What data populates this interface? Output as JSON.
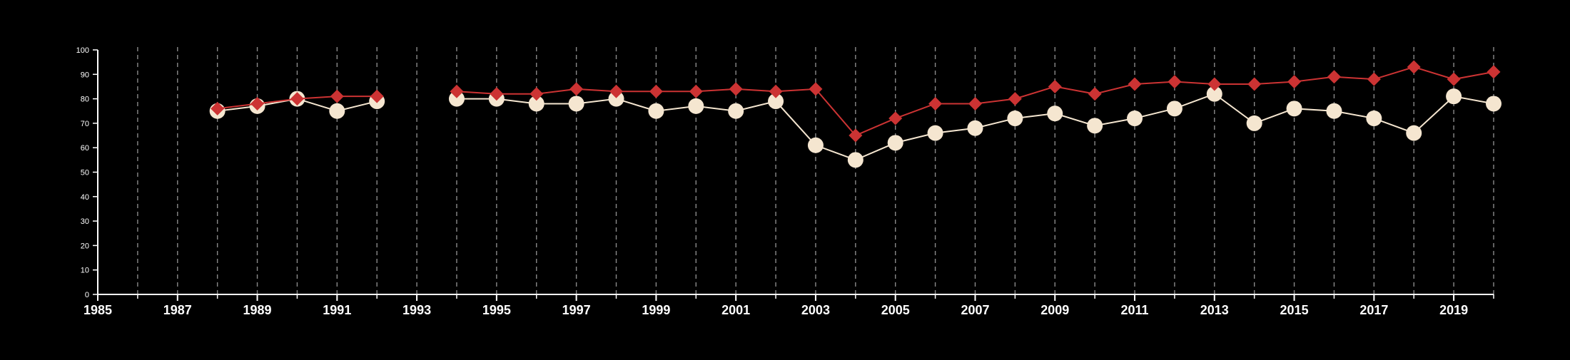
{
  "chart_data": {
    "type": "line",
    "title": "",
    "xlabel": "",
    "ylabel": "",
    "xlim": [
      1985,
      2020
    ],
    "ylim": [
      0,
      100
    ],
    "x_ticks": [
      "1985",
      "1987",
      "1989",
      "1991",
      "1993",
      "1995",
      "1997",
      "1999",
      "2001",
      "2003",
      "2005",
      "2007",
      "2009",
      "2011",
      "2013",
      "2015",
      "2017",
      "2019"
    ],
    "y_ticks": [
      "0",
      "10",
      "20",
      "30",
      "40",
      "50",
      "60",
      "70",
      "80",
      "90",
      "100"
    ],
    "vertical_gridlines": "dashed, every year 1986–2020",
    "legend": "none",
    "series": [
      {
        "color": "#cc3333",
        "marker": "diamond",
        "points": [
          {
            "x": 1988,
            "y": 76
          },
          {
            "x": 1989,
            "y": 78
          },
          {
            "x": 1990,
            "y": 80
          },
          {
            "x": 1991,
            "y": 81
          },
          {
            "x": 1992,
            "y": 81
          },
          {
            "x": 1994,
            "y": 83
          },
          {
            "x": 1995,
            "y": 82
          },
          {
            "x": 1996,
            "y": 82
          },
          {
            "x": 1997,
            "y": 84
          },
          {
            "x": 1998,
            "y": 83
          },
          {
            "x": 1999,
            "y": 83
          },
          {
            "x": 2000,
            "y": 83
          },
          {
            "x": 2001,
            "y": 84
          },
          {
            "x": 2002,
            "y": 83
          },
          {
            "x": 2003,
            "y": 84
          },
          {
            "x": 2004,
            "y": 65
          },
          {
            "x": 2005,
            "y": 72
          },
          {
            "x": 2006,
            "y": 78
          },
          {
            "x": 2007,
            "y": 78
          },
          {
            "x": 2008,
            "y": 80
          },
          {
            "x": 2009,
            "y": 85
          },
          {
            "x": 2010,
            "y": 82
          },
          {
            "x": 2011,
            "y": 86
          },
          {
            "x": 2012,
            "y": 87
          },
          {
            "x": 2013,
            "y": 86
          },
          {
            "x": 2014,
            "y": 86
          },
          {
            "x": 2015,
            "y": 87
          },
          {
            "x": 2016,
            "y": 89
          },
          {
            "x": 2017,
            "y": 88
          },
          {
            "x": 2018,
            "y": 93
          },
          {
            "x": 2019,
            "y": 88
          },
          {
            "x": 2020,
            "y": 91
          }
        ]
      },
      {
        "color": "#f5e6d0",
        "marker": "circle",
        "points": [
          {
            "x": 1988,
            "y": 75
          },
          {
            "x": 1989,
            "y": 77
          },
          {
            "x": 1990,
            "y": 80
          },
          {
            "x": 1991,
            "y": 75
          },
          {
            "x": 1992,
            "y": 79
          },
          {
            "x": 1994,
            "y": 80
          },
          {
            "x": 1995,
            "y": 80
          },
          {
            "x": 1996,
            "y": 78
          },
          {
            "x": 1997,
            "y": 78
          },
          {
            "x": 1998,
            "y": 80
          },
          {
            "x": 1999,
            "y": 75
          },
          {
            "x": 2000,
            "y": 77
          },
          {
            "x": 2001,
            "y": 75
          },
          {
            "x": 2002,
            "y": 79
          },
          {
            "x": 2003,
            "y": 61
          },
          {
            "x": 2004,
            "y": 55
          },
          {
            "x": 2005,
            "y": 62
          },
          {
            "x": 2006,
            "y": 66
          },
          {
            "x": 2007,
            "y": 68
          },
          {
            "x": 2008,
            "y": 72
          },
          {
            "x": 2009,
            "y": 74
          },
          {
            "x": 2010,
            "y": 69
          },
          {
            "x": 2011,
            "y": 72
          },
          {
            "x": 2012,
            "y": 76
          },
          {
            "x": 2013,
            "y": 82
          },
          {
            "x": 2014,
            "y": 70
          },
          {
            "x": 2015,
            "y": 76
          },
          {
            "x": 2016,
            "y": 75
          },
          {
            "x": 2017,
            "y": 72
          },
          {
            "x": 2018,
            "y": 66
          },
          {
            "x": 2019,
            "y": 81
          },
          {
            "x": 2020,
            "y": 78
          }
        ]
      }
    ]
  }
}
